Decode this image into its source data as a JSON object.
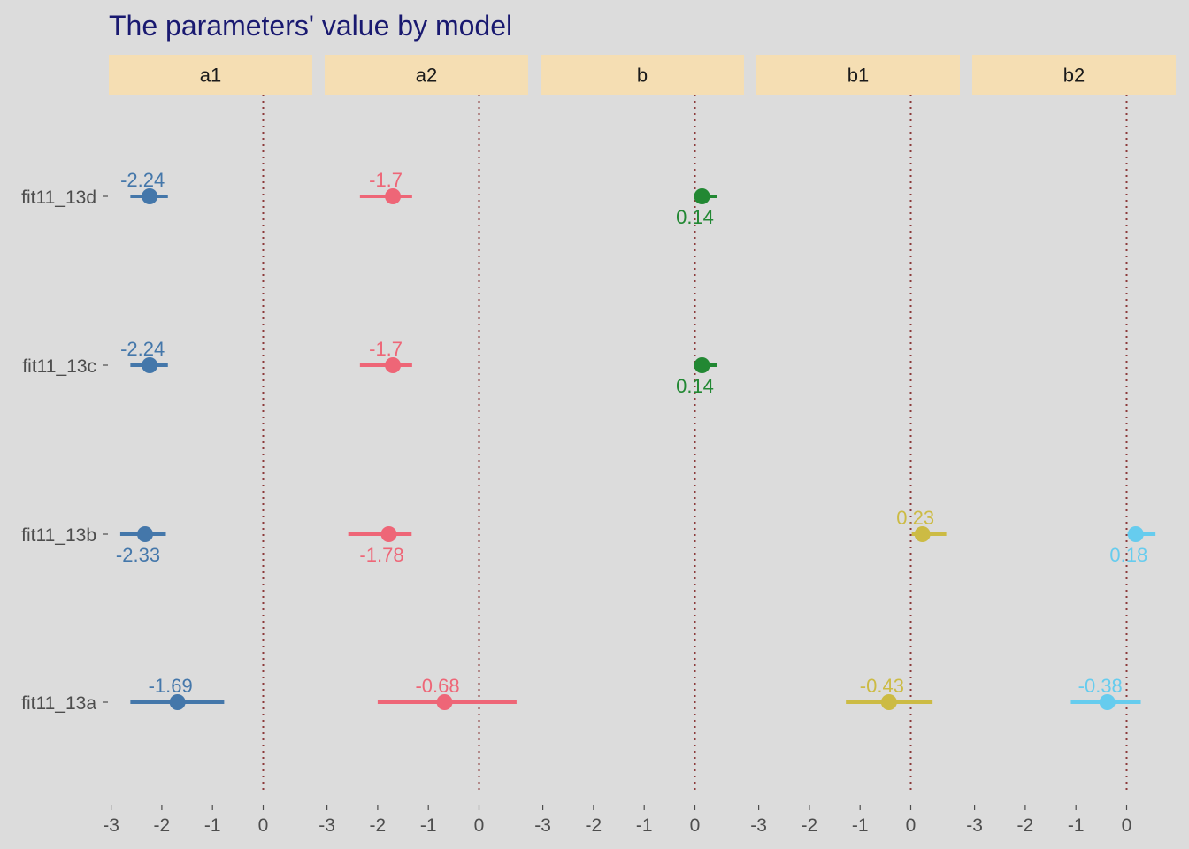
{
  "chart_data": {
    "type": "scatter",
    "title": "The parameters' value by model",
    "xlabel": "",
    "ylabel": "",
    "facets": [
      "a1",
      "a2",
      "b",
      "b1",
      "b2"
    ],
    "models": [
      "fit11_13d",
      "fit11_13c",
      "fit11_13b",
      "fit11_13a"
    ],
    "xlim": [
      -3,
      0.5
    ],
    "x_ticks": [
      "-3",
      "-2",
      "-1",
      "0"
    ],
    "reference_line_x": 0,
    "grid": false,
    "colors": {
      "a1": "#4477aa",
      "a2": "#ee6677",
      "b": "#228833",
      "b1": "#ccbb44",
      "b2": "#66ccee",
      "strip_bg": "#f5deb3",
      "panel_bg": "#dcdcdc",
      "reference_line": "#8b3a3a"
    },
    "points": [
      {
        "model": "fit11_13d",
        "parameter": "a1",
        "estimate": -2.24,
        "lower": -2.62,
        "upper": -1.88,
        "label": "-2.24",
        "label_pos": "above"
      },
      {
        "model": "fit11_13d",
        "parameter": "a2",
        "estimate": -1.7,
        "lower": -2.35,
        "upper": -1.32,
        "label": "-1.7",
        "label_pos": "above"
      },
      {
        "model": "fit11_13d",
        "parameter": "b",
        "estimate": 0.14,
        "lower": 0.07,
        "upper": 0.43,
        "label": "0.14",
        "label_pos": "below"
      },
      {
        "model": "fit11_13c",
        "parameter": "a1",
        "estimate": -2.24,
        "lower": -2.62,
        "upper": -1.88,
        "label": "-2.24",
        "label_pos": "above"
      },
      {
        "model": "fit11_13c",
        "parameter": "a2",
        "estimate": -1.7,
        "lower": -2.35,
        "upper": -1.32,
        "label": "-1.7",
        "label_pos": "above"
      },
      {
        "model": "fit11_13c",
        "parameter": "b",
        "estimate": 0.14,
        "lower": 0.07,
        "upper": 0.43,
        "label": "0.14",
        "label_pos": "below"
      },
      {
        "model": "fit11_13b",
        "parameter": "a1",
        "estimate": -2.33,
        "lower": -2.82,
        "upper": -1.92,
        "label": "-2.33",
        "label_pos": "below"
      },
      {
        "model": "fit11_13b",
        "parameter": "a2",
        "estimate": -1.78,
        "lower": -2.58,
        "upper": -1.33,
        "label": "-1.78",
        "label_pos": "below"
      },
      {
        "model": "fit11_13b",
        "parameter": "b1",
        "estimate": 0.23,
        "lower": 0.02,
        "upper": 0.7,
        "label": "0.23",
        "label_pos": "above"
      },
      {
        "model": "fit11_13b",
        "parameter": "b2",
        "estimate": 0.18,
        "lower": 0.02,
        "upper": 0.57,
        "label": "0.18",
        "label_pos": "below"
      },
      {
        "model": "fit11_13a",
        "parameter": "a1",
        "estimate": -1.69,
        "lower": -2.62,
        "upper": -0.77,
        "label": "-1.69",
        "label_pos": "above"
      },
      {
        "model": "fit11_13a",
        "parameter": "a2",
        "estimate": -0.68,
        "lower": -2.0,
        "upper": 0.74,
        "label": "-0.68",
        "label_pos": "above"
      },
      {
        "model": "fit11_13a",
        "parameter": "b1",
        "estimate": -0.43,
        "lower": -1.28,
        "upper": 0.43,
        "label": "-0.43",
        "label_pos": "above"
      },
      {
        "model": "fit11_13a",
        "parameter": "b2",
        "estimate": -0.38,
        "lower": -1.1,
        "upper": 0.28,
        "label": "-0.38",
        "label_pos": "above"
      }
    ]
  }
}
